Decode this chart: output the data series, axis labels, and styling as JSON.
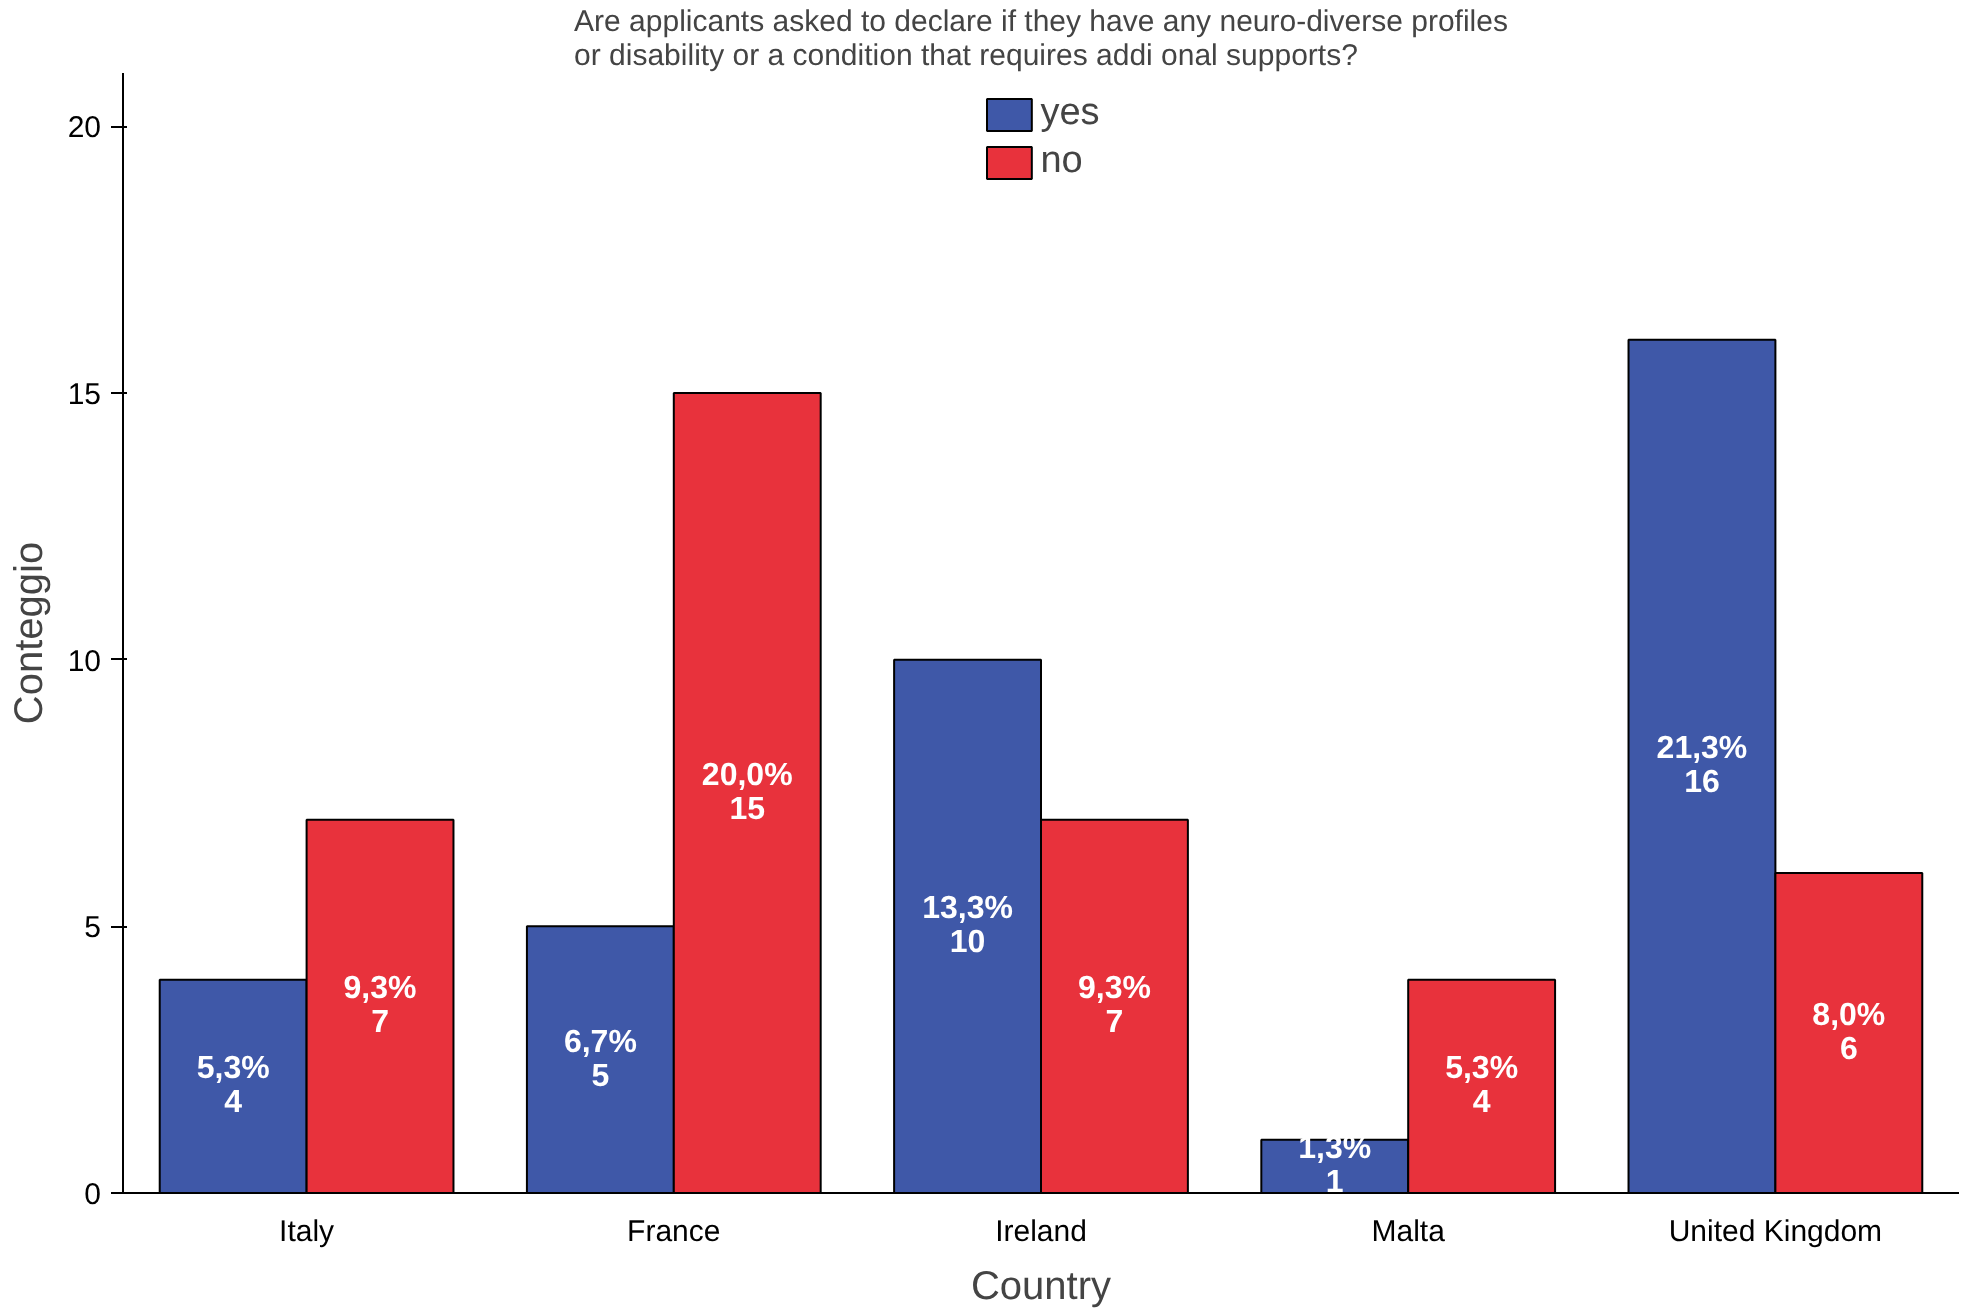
{
  "chart_data": {
    "type": "bar",
    "title": "Are applicants asked to declare if they have any neuro-diverse profiles or disability or a condition that requires addi onal supports?",
    "xlabel": "Country",
    "ylabel": "Conteggio",
    "categories": [
      "Italy",
      "France",
      "Ireland",
      "Malta",
      "United Kingdom"
    ],
    "series": [
      {
        "name": "yes",
        "color": "#3f58a8",
        "values": [
          4,
          5,
          10,
          1,
          16
        ],
        "value_labels": [
          "5,3%\n4",
          "6,7%\n5",
          "13,3%\n10",
          "1,3%\n1",
          "21,3%\n16"
        ]
      },
      {
        "name": "no",
        "color": "#e8323c",
        "values": [
          7,
          15,
          7,
          4,
          6
        ],
        "value_labels": [
          "9,3%\n7",
          "20,0%\n15",
          "9,3%\n7",
          "5,3%\n4",
          "8,0%\n6"
        ]
      }
    ],
    "ylim": [
      0,
      21
    ],
    "yticks": [
      0,
      5,
      10,
      15,
      20
    ],
    "grid": false,
    "legend": "top"
  }
}
